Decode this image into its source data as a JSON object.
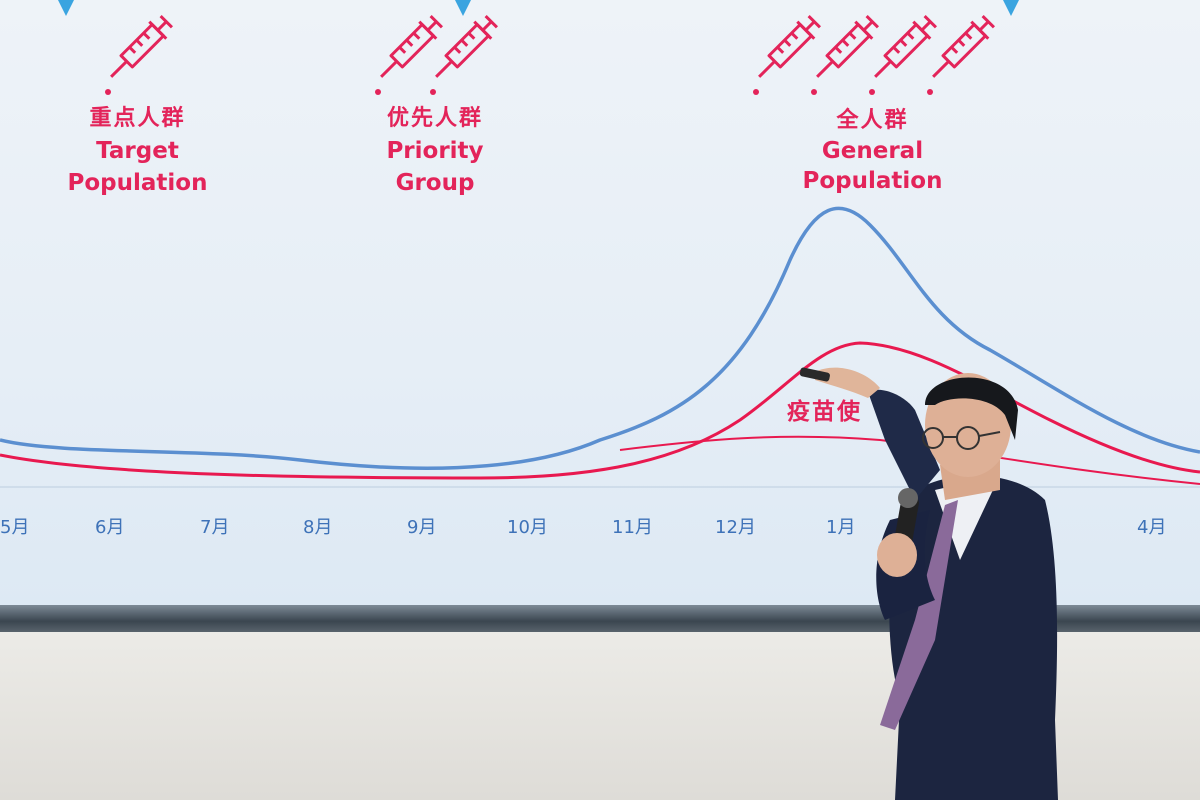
{
  "screen": {
    "phases": [
      {
        "zh": "重点人群",
        "en1": "Target",
        "en2": "Population",
        "syringes": 1
      },
      {
        "zh": "优先人群",
        "en1": "Priority",
        "en2": "Group",
        "syringes": 2
      },
      {
        "zh": "全人群",
        "en1": "General",
        "en2": "Population",
        "syringes": 4
      }
    ],
    "curve_label": "疫苗使",
    "months": [
      "5月",
      "6月",
      "7月",
      "8月",
      "9月",
      "10月",
      "11月",
      "12月",
      "1月",
      "",
      "4月"
    ],
    "colors": {
      "blue_curve": "#5b8fd0",
      "red_curve": "#e8194f",
      "text_red": "#e3245a",
      "month_text": "#3e72b8"
    }
  },
  "icons": [
    "syringe-icon",
    "microphone-icon",
    "clicker-icon"
  ]
}
